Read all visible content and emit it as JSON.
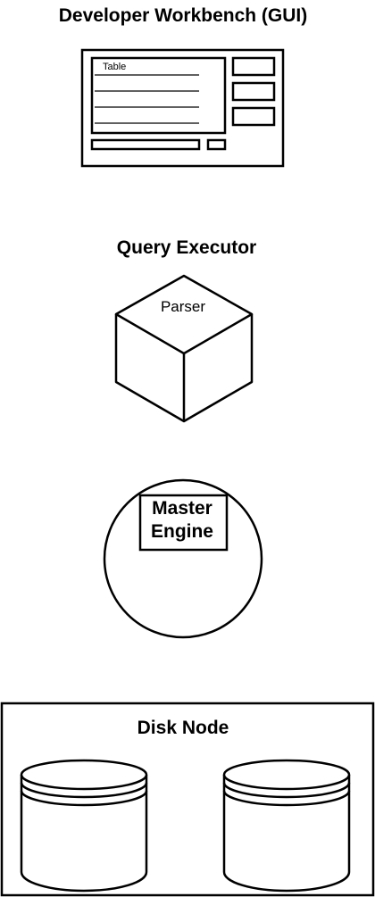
{
  "components": {
    "workbench": {
      "title": "Developer Workbench (GUI)",
      "table_label": "Table"
    },
    "executor": {
      "title": "Query Executor",
      "cube_label": "Parser"
    },
    "engine": {
      "label_line1": "Master",
      "label_line2": "Engine"
    },
    "disk": {
      "title": "Disk Node"
    }
  },
  "colors": {
    "stroke": "#000000",
    "background": "#ffffff"
  }
}
